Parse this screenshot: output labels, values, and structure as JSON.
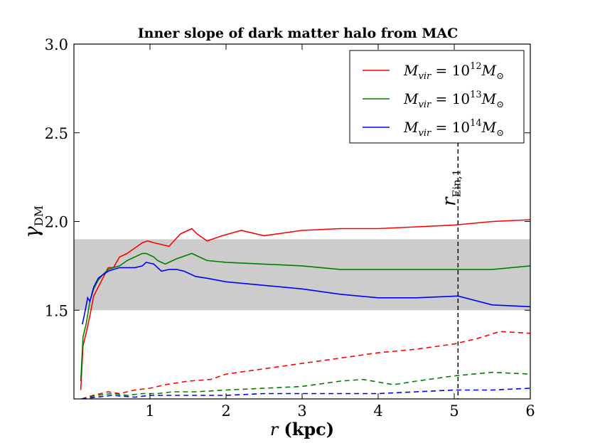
{
  "chart_data": {
    "type": "line",
    "title": "Inner slope of dark matter halo from MAC",
    "xlabel": "r (kpc)",
    "xlabel_var": "r",
    "xlabel_unit": "(kpc)",
    "ylabel": "γDM",
    "ylabel_main": "γ",
    "ylabel_sub": "DM",
    "xlim": [
      0,
      6
    ],
    "ylim": [
      1.0,
      3.0
    ],
    "xticks": [
      "1",
      "2",
      "3",
      "4",
      "5",
      "6"
    ],
    "yticks": [
      "1.5",
      "2.0",
      "2.5",
      "3.0"
    ],
    "shaded_band": {
      "y0": 1.5,
      "y1": 1.9,
      "color": "#cccccc"
    },
    "vline": {
      "x": 5.05,
      "label_main": "r",
      "label_sub": "Ein,1",
      "style": "dashed",
      "color": "#000000"
    },
    "legend_position": "top-right",
    "series": [
      {
        "name": "M_vir = 10^12 M_⊙",
        "legend_var": "M",
        "legend_sub": "vir",
        "legend_eq": "= 10",
        "legend_exp": "12",
        "legend_M": "M",
        "legend_odot": "⊙",
        "color": "#ff0000",
        "style": "solid",
        "x": [
          0.09,
          0.12,
          0.16,
          0.21,
          0.26,
          0.32,
          0.38,
          0.45,
          0.52,
          0.6,
          0.7,
          0.8,
          0.9,
          0.97,
          1.05,
          1.15,
          1.25,
          1.4,
          1.55,
          1.62,
          1.75,
          1.95,
          2.2,
          2.5,
          3.0,
          3.5,
          4.0,
          4.5,
          5.0,
          5.5,
          6.0
        ],
        "y": [
          1.05,
          1.3,
          1.37,
          1.47,
          1.58,
          1.63,
          1.68,
          1.74,
          1.74,
          1.8,
          1.82,
          1.85,
          1.88,
          1.89,
          1.88,
          1.87,
          1.86,
          1.93,
          1.96,
          1.93,
          1.89,
          1.92,
          1.95,
          1.92,
          1.95,
          1.96,
          1.96,
          1.97,
          1.98,
          2.0,
          2.01
        ]
      },
      {
        "name": "M_vir = 10^13 M_⊙",
        "legend_var": "M",
        "legend_sub": "vir",
        "legend_eq": "= 10",
        "legend_exp": "13",
        "legend_M": "M",
        "legend_odot": "⊙",
        "color": "#008000",
        "style": "solid",
        "x": [
          0.09,
          0.12,
          0.16,
          0.21,
          0.26,
          0.32,
          0.38,
          0.45,
          0.52,
          0.6,
          0.7,
          0.8,
          0.9,
          0.95,
          1.05,
          1.1,
          1.2,
          1.35,
          1.55,
          1.65,
          1.75,
          2.0,
          2.5,
          3.0,
          3.5,
          4.0,
          4.5,
          5.0,
          5.5,
          6.0
        ],
        "y": [
          1.1,
          1.35,
          1.42,
          1.55,
          1.62,
          1.67,
          1.7,
          1.73,
          1.74,
          1.75,
          1.78,
          1.8,
          1.82,
          1.82,
          1.8,
          1.78,
          1.76,
          1.79,
          1.82,
          1.8,
          1.78,
          1.77,
          1.76,
          1.75,
          1.73,
          1.73,
          1.73,
          1.73,
          1.73,
          1.75
        ]
      },
      {
        "name": "M_vir = 10^14 M_⊙",
        "legend_var": "M",
        "legend_sub": "vir",
        "legend_eq": "= 10",
        "legend_exp": "14",
        "legend_M": "M",
        "legend_odot": "⊙",
        "color": "#0000ff",
        "style": "solid",
        "x": [
          0.11,
          0.14,
          0.18,
          0.21,
          0.26,
          0.32,
          0.38,
          0.45,
          0.52,
          0.6,
          0.7,
          0.8,
          0.9,
          0.95,
          1.05,
          1.15,
          1.25,
          1.35,
          1.45,
          1.6,
          1.75,
          2.0,
          2.5,
          3.0,
          3.5,
          4.0,
          4.5,
          5.05,
          5.5,
          6.0
        ],
        "y": [
          1.42,
          1.48,
          1.57,
          1.55,
          1.63,
          1.68,
          1.7,
          1.72,
          1.73,
          1.74,
          1.74,
          1.74,
          1.75,
          1.77,
          1.76,
          1.72,
          1.73,
          1.73,
          1.72,
          1.69,
          1.68,
          1.66,
          1.64,
          1.62,
          1.59,
          1.57,
          1.57,
          1.58,
          1.53,
          1.52
        ]
      },
      {
        "name": "M_vir = 10^12 M_⊙ (dashed)",
        "color": "#ff0000",
        "style": "dashed",
        "x": [
          0.1,
          0.25,
          0.45,
          0.6,
          0.8,
          1.0,
          1.2,
          1.5,
          1.8,
          2.0,
          2.5,
          3.0,
          3.5,
          4.0,
          4.5,
          5.0,
          5.3,
          5.6,
          6.0
        ],
        "y": [
          1.0,
          1.02,
          1.04,
          1.03,
          1.05,
          1.06,
          1.08,
          1.1,
          1.11,
          1.14,
          1.17,
          1.2,
          1.23,
          1.26,
          1.28,
          1.31,
          1.34,
          1.38,
          1.37
        ]
      },
      {
        "name": "M_vir = 10^13 M_⊙ (dashed)",
        "color": "#008000",
        "style": "dashed",
        "x": [
          0.1,
          0.3,
          0.5,
          0.7,
          0.9,
          1.1,
          1.3,
          1.6,
          2.0,
          2.5,
          3.0,
          3.5,
          3.8,
          4.2,
          4.5,
          5.0,
          5.5,
          6.0
        ],
        "y": [
          1.0,
          1.02,
          1.03,
          1.02,
          1.03,
          1.03,
          1.04,
          1.04,
          1.05,
          1.06,
          1.07,
          1.1,
          1.11,
          1.08,
          1.1,
          1.13,
          1.15,
          1.14
        ]
      },
      {
        "name": "M_vir = 10^14 M_⊙ (dashed)",
        "color": "#0000ff",
        "style": "dashed",
        "x": [
          0.1,
          0.3,
          0.5,
          0.8,
          1.0,
          1.3,
          1.6,
          2.0,
          2.5,
          3.0,
          3.5,
          4.0,
          4.5,
          5.0,
          5.5,
          6.0
        ],
        "y": [
          1.0,
          1.01,
          1.02,
          1.01,
          1.02,
          1.02,
          1.02,
          1.02,
          1.03,
          1.03,
          1.03,
          1.03,
          1.04,
          1.05,
          1.05,
          1.06
        ]
      }
    ]
  }
}
